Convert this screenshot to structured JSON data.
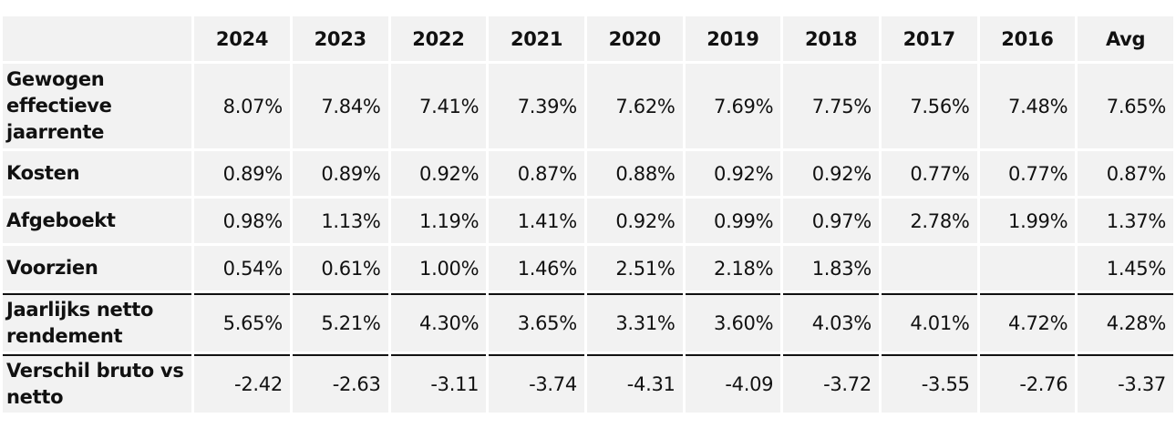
{
  "table": {
    "columns": [
      "2024",
      "2023",
      "2022",
      "2021",
      "2020",
      "2019",
      "2018",
      "2017",
      "2016",
      "Avg"
    ],
    "rows": [
      {
        "label": "Gewogen effectieve jaarrente",
        "values": [
          "8.07%",
          "7.84%",
          "7.41%",
          "7.39%",
          "7.62%",
          "7.69%",
          "7.75%",
          "7.56%",
          "7.48%",
          "7.65%"
        ]
      },
      {
        "label": "Kosten",
        "values": [
          "0.89%",
          "0.89%",
          "0.92%",
          "0.87%",
          "0.88%",
          "0.92%",
          "0.92%",
          "0.77%",
          "0.77%",
          "0.87%"
        ]
      },
      {
        "label": "Afgeboekt",
        "values": [
          "0.98%",
          "1.13%",
          "1.19%",
          "1.41%",
          "0.92%",
          "0.99%",
          "0.97%",
          "2.78%",
          "1.99%",
          "1.37%"
        ]
      },
      {
        "label": "Voorzien",
        "values": [
          "0.54%",
          "0.61%",
          "1.00%",
          "1.46%",
          "2.51%",
          "2.18%",
          "1.83%",
          "",
          "",
          "1.45%"
        ]
      },
      {
        "label": "Jaarlijks netto rendement",
        "values": [
          "5.65%",
          "5.21%",
          "4.30%",
          "3.65%",
          "3.31%",
          "3.60%",
          "4.03%",
          "4.01%",
          "4.72%",
          "4.28%"
        ]
      },
      {
        "label": "Verschil bruto vs netto",
        "values": [
          "-2.42",
          "-2.63",
          "-3.11",
          "-3.74",
          "-4.31",
          "-4.09",
          "-3.72",
          "-3.55",
          "-2.76",
          "-3.37"
        ]
      }
    ]
  }
}
